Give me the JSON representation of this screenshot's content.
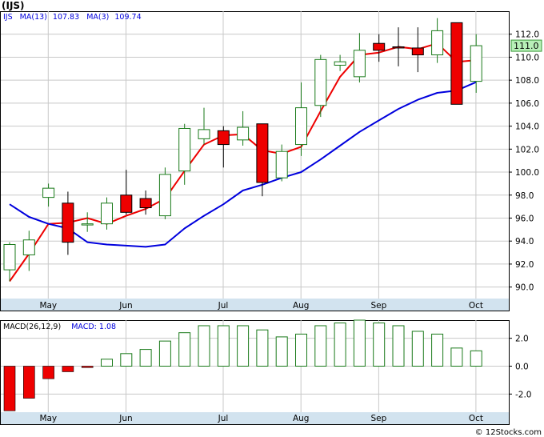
{
  "colors": {
    "up_candle_border": "#1a7a1a",
    "down_candle_fill": "#ee0000",
    "ma_short": "#ee0000",
    "ma_long": "#0000dd",
    "macd_bar_border": "#1a7a1a",
    "axis_band": "#d2e3ef",
    "grid": "#c8c8c8",
    "price_flag": "#b8f0b8"
  },
  "chart_data": [
    {
      "type": "candlestick",
      "title": "(IJS)",
      "legend_symbol": "IJS",
      "indicators": [
        {
          "label": "MA(13)",
          "value": "107.83",
          "color": "#0000dd"
        },
        {
          "label": "MA(3)",
          "value": "109.74",
          "color": "#ee0000"
        }
      ],
      "current_price_label": "111.0",
      "ylim": [
        89,
        114
      ],
      "yticks": [
        90,
        92,
        94,
        96,
        98,
        100,
        102,
        104,
        106,
        108,
        110,
        112
      ],
      "ytick_labels": [
        "90.0",
        "92.0",
        "94.0",
        "96.0",
        "98.0",
        "100.0",
        "102.0",
        "104.0",
        "106.0",
        "108.0",
        "110.0",
        "112.0"
      ],
      "xticks": [
        {
          "label": "May",
          "index": 1
        },
        {
          "label": "Jun",
          "index": 5
        },
        {
          "label": "Jul",
          "index": 10
        },
        {
          "label": "Aug",
          "index": 14
        },
        {
          "label": "Sep",
          "index": 18
        },
        {
          "label": "Oct",
          "index": 23
        }
      ],
      "grid": true,
      "candles": [
        {
          "o": 91.5,
          "h": 93.9,
          "l": 90.5,
          "c": 93.7
        },
        {
          "o": 92.8,
          "h": 94.9,
          "l": 91.4,
          "c": 94.1
        },
        {
          "o": 97.8,
          "h": 99.0,
          "l": 97.0,
          "c": 98.6
        },
        {
          "o": 97.3,
          "h": 98.3,
          "l": 92.8,
          "c": 93.9
        },
        {
          "o": 95.4,
          "h": 96.5,
          "l": 94.8,
          "c": 95.5
        },
        {
          "o": 95.5,
          "h": 97.8,
          "l": 95.0,
          "c": 97.3
        },
        {
          "o": 98.0,
          "h": 100.2,
          "l": 96.3,
          "c": 96.5
        },
        {
          "o": 97.7,
          "h": 98.4,
          "l": 96.3,
          "c": 96.9
        },
        {
          "o": 96.2,
          "h": 100.4,
          "l": 95.9,
          "c": 99.8
        },
        {
          "o": 100.1,
          "h": 104.2,
          "l": 98.9,
          "c": 103.8
        },
        {
          "o": 102.9,
          "h": 105.6,
          "l": 102.4,
          "c": 103.7
        },
        {
          "o": 103.6,
          "h": 104.0,
          "l": 100.4,
          "c": 102.4
        },
        {
          "o": 102.8,
          "h": 105.3,
          "l": 102.3,
          "c": 103.9
        },
        {
          "o": 104.2,
          "h": 104.2,
          "l": 97.9,
          "c": 99.1
        },
        {
          "o": 99.5,
          "h": 102.4,
          "l": 99.2,
          "c": 101.8
        },
        {
          "o": 102.4,
          "h": 107.8,
          "l": 101.4,
          "c": 105.6
        },
        {
          "o": 105.8,
          "h": 110.2,
          "l": 104.8,
          "c": 109.8
        },
        {
          "o": 109.3,
          "h": 110.2,
          "l": 108.8,
          "c": 109.6
        },
        {
          "o": 108.3,
          "h": 112.1,
          "l": 107.8,
          "c": 110.6
        },
        {
          "o": 111.2,
          "h": 112.0,
          "l": 109.6,
          "c": 110.6
        },
        {
          "o": 110.9,
          "h": 112.6,
          "l": 109.2,
          "c": 110.8
        },
        {
          "o": 110.8,
          "h": 112.6,
          "l": 108.7,
          "c": 110.2
        },
        {
          "o": 110.2,
          "h": 113.4,
          "l": 109.5,
          "c": 112.3
        },
        {
          "o": 113.0,
          "h": 113.0,
          "l": 105.9,
          "c": 105.9
        },
        {
          "o": 107.9,
          "h": 112.0,
          "l": 106.9,
          "c": 111.0
        }
      ],
      "ma_long": [
        90.5,
        92.9,
        95.5,
        95.6,
        96.0,
        95.5,
        96.2,
        96.8,
        97.7,
        100.1,
        102.4,
        103.2,
        103.3,
        101.9,
        101.6,
        102.2,
        105.3,
        108.3,
        110.2,
        110.4,
        110.9,
        110.7,
        111.2,
        109.6,
        109.74
      ],
      "ma_short": [
        97.2,
        96.1,
        95.5,
        95.1,
        93.9,
        93.7,
        93.6,
        93.5,
        93.7,
        95.1,
        96.2,
        97.2,
        98.4,
        98.9,
        99.5,
        100.0,
        101.1,
        102.3,
        103.5,
        104.5,
        105.5,
        106.3,
        106.9,
        107.1,
        107.83
      ]
    },
    {
      "type": "bar",
      "title": "MACD(26,12,9)",
      "indicators": [
        {
          "label": "MACD:",
          "value": "1.08",
          "color": "#0000dd"
        }
      ],
      "ylim": [
        -3.3,
        3.3
      ],
      "yticks": [
        -2.0,
        0.0,
        2.0
      ],
      "ytick_labels": [
        "-2.0",
        "0.0",
        "2.0"
      ],
      "xticks": [
        {
          "label": "May",
          "index": 1
        },
        {
          "label": "Jun",
          "index": 5
        },
        {
          "label": "Jul",
          "index": 10
        },
        {
          "label": "Aug",
          "index": 14
        },
        {
          "label": "Sep",
          "index": 18
        },
        {
          "label": "Oct",
          "index": 23
        }
      ],
      "values": [
        -3.2,
        -2.3,
        -0.9,
        -0.4,
        -0.1,
        0.5,
        0.9,
        1.2,
        1.8,
        2.4,
        2.9,
        2.9,
        2.9,
        2.6,
        2.1,
        2.3,
        2.9,
        3.1,
        3.3,
        3.1,
        2.9,
        2.5,
        2.3,
        1.3,
        1.1
      ]
    }
  ],
  "footer": {
    "credit": "© 12Stocks.com"
  }
}
